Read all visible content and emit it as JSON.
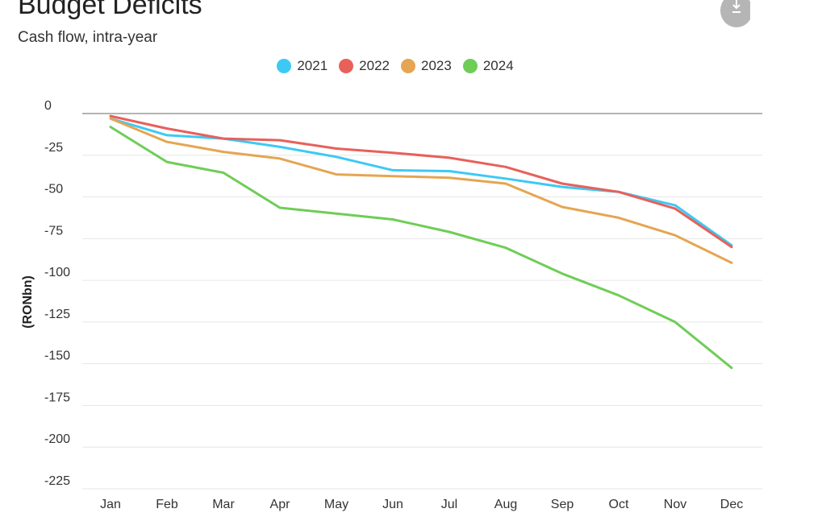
{
  "header": {
    "title": "Budget Deficits",
    "subtitle": "Cash flow, intra-year",
    "download_icon": "download-icon"
  },
  "chart_data": {
    "type": "line",
    "title": "Budget Deficits",
    "subtitle": "Cash flow, intra-year",
    "xlabel": "",
    "ylabel": "(RONbn)",
    "categories": [
      "Jan",
      "Feb",
      "Mar",
      "Apr",
      "May",
      "Jun",
      "Jul",
      "Aug",
      "Sep",
      "Oct",
      "Nov",
      "Dec"
    ],
    "ylim": [
      -225,
      0
    ],
    "yticks": [
      0,
      -25,
      -50,
      -75,
      -100,
      -125,
      -150,
      -175,
      -200,
      -225
    ],
    "grid": true,
    "legend_position": "top-center",
    "series": [
      {
        "name": "2021",
        "color": "#3dc9f5",
        "values": [
          -3,
          -13,
          -15,
          -20,
          -26,
          -34,
          -34.5,
          -39,
          -44,
          -47,
          -55,
          -79
        ]
      },
      {
        "name": "2022",
        "color": "#e8605a",
        "values": [
          -1.5,
          -9,
          -15,
          -16,
          -21,
          -23.5,
          -26.5,
          -32,
          -42,
          -47,
          -57,
          -80
        ]
      },
      {
        "name": "2023",
        "color": "#e5a552",
        "values": [
          -3,
          -17,
          -23,
          -27,
          -36.5,
          -37.5,
          -38.5,
          -42,
          -56,
          -62.5,
          -73,
          -89.5
        ]
      },
      {
        "name": "2024",
        "color": "#6fcd57",
        "values": [
          -8,
          -29,
          -35.5,
          -56.5,
          -60,
          -63.5,
          -71,
          -80.5,
          -96,
          -109,
          -125,
          -152.5
        ]
      }
    ]
  }
}
